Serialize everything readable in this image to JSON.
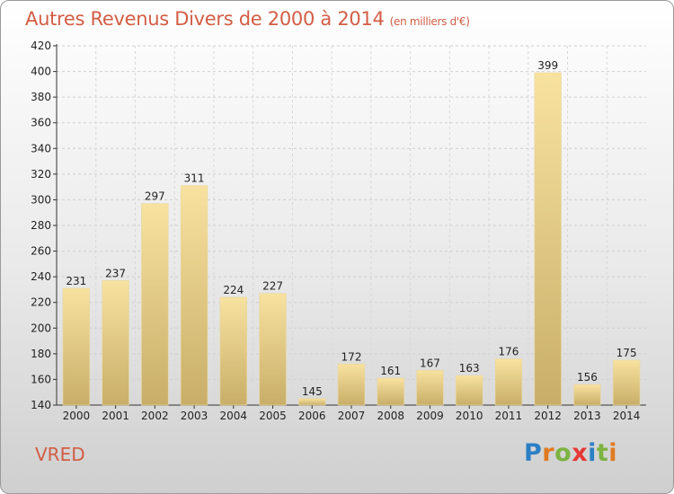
{
  "header": {
    "title": "Autres Revenus Divers de 2000 à 2014",
    "subtitle": "(en milliers d'€)"
  },
  "commune": "VRED",
  "logo": {
    "letters": [
      "P",
      "r",
      "o",
      "x",
      "i",
      "t",
      "i"
    ],
    "colors": [
      "#2b7fc4",
      "#e07a1f",
      "#7cb342",
      "#e53935",
      "#2b7fc4",
      "#7cb342",
      "#e07a1f"
    ]
  },
  "chart_data": {
    "type": "bar",
    "title": "Autres Revenus Divers de 2000 à 2014",
    "subtitle": "(en milliers d'€)",
    "xlabel": "",
    "ylabel": "",
    "categories": [
      "2000",
      "2001",
      "2002",
      "2003",
      "2004",
      "2005",
      "2006",
      "2007",
      "2008",
      "2009",
      "2010",
      "2011",
      "2012",
      "2013",
      "2014"
    ],
    "values": [
      231,
      237,
      297,
      311,
      224,
      227,
      145,
      172,
      161,
      167,
      163,
      176,
      399,
      156,
      175
    ],
    "ylim": [
      140,
      420
    ],
    "yticks": [
      140,
      160,
      180,
      200,
      220,
      240,
      260,
      280,
      300,
      320,
      340,
      360,
      380,
      400,
      420
    ],
    "grid": true,
    "bar_color_light": "#f8e2a0",
    "bar_color_dark": "#c8ae68"
  }
}
